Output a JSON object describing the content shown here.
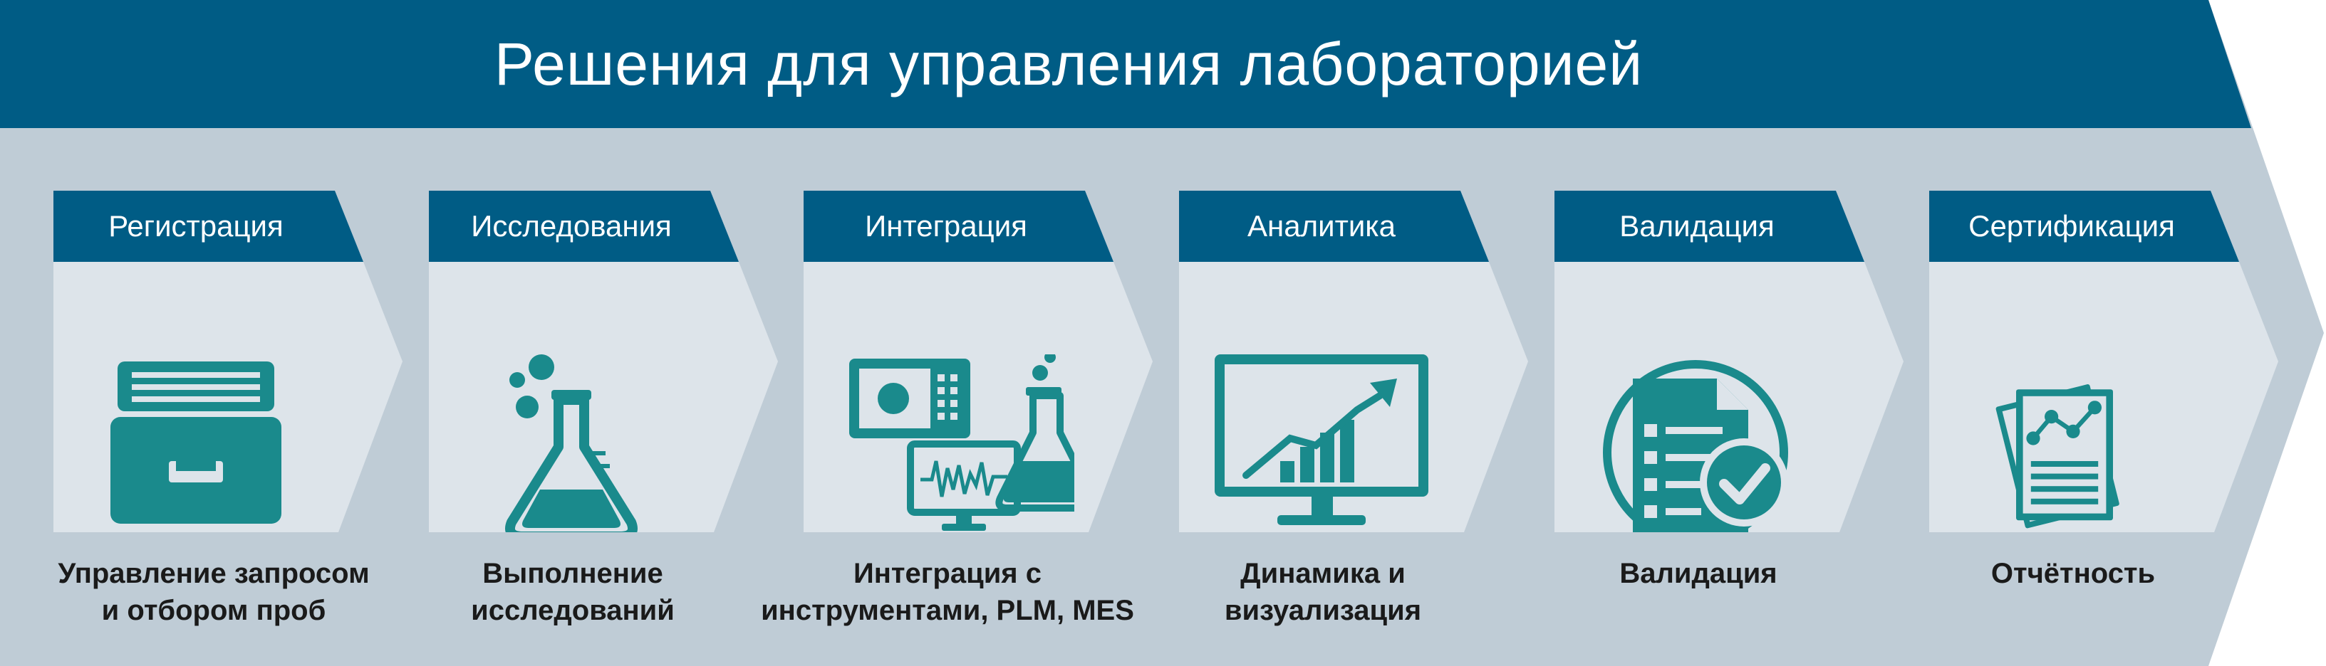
{
  "title": "Решения для управления лабораторией",
  "colors": {
    "banner": "#005c85",
    "background": "#bfccd6",
    "panel": "#dde4ea",
    "icon": "#1a8a8c"
  },
  "stages": [
    {
      "tab": "Регистрация",
      "icon": "file-drawer-icon",
      "desc": [
        "Управление запросом",
        "и отбором проб"
      ]
    },
    {
      "tab": "Исследования",
      "icon": "flask-icon",
      "desc": [
        "Выполнение",
        "исследований"
      ]
    },
    {
      "tab": "Интеграция",
      "icon": "instruments-icon",
      "desc": [
        "Интеграция с",
        "инструментами, PLM, MES"
      ]
    },
    {
      "tab": "Аналитика",
      "icon": "chart-monitor-icon",
      "desc": [
        "Динамика и",
        "визуализация"
      ]
    },
    {
      "tab": "Валидация",
      "icon": "checked-document-icon",
      "desc": [
        "Валидация"
      ]
    },
    {
      "tab": "Сертификация",
      "icon": "report-icon",
      "desc": [
        "Отчётность"
      ]
    }
  ]
}
